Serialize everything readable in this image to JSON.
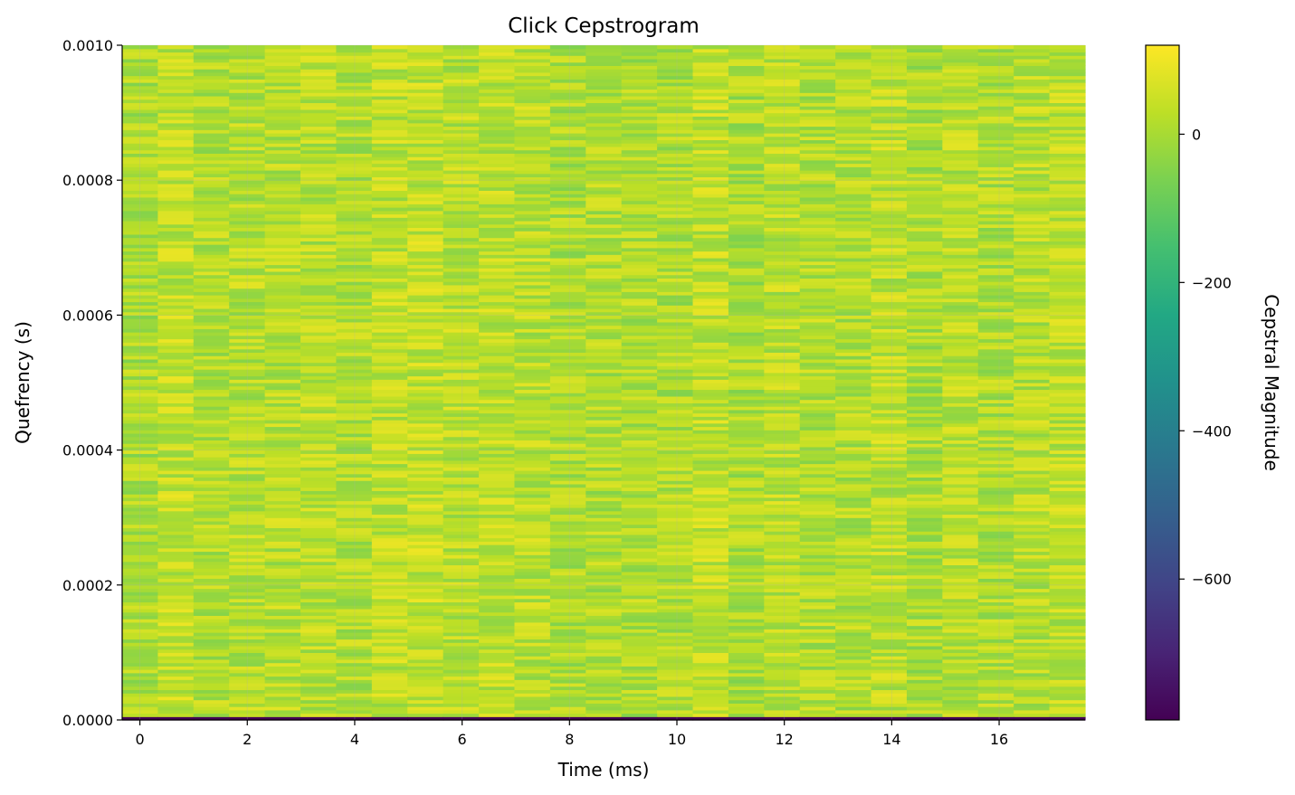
{
  "chart_data": {
    "type": "heatmap",
    "title": "Click Cepstrogram",
    "xlabel": "Time (ms)",
    "ylabel": "Quefrency (s)",
    "colorbar_label": "Cepstral Magnitude",
    "colormap": "viridis",
    "xlim": [
      -0.33,
      17.6
    ],
    "ylim": [
      0.0,
      0.001
    ],
    "clim": [
      -790,
      120
    ],
    "x_ticks": [
      0,
      2,
      4,
      6,
      8,
      10,
      12,
      14,
      16
    ],
    "x_tick_labels": [
      "0",
      "2",
      "4",
      "6",
      "8",
      "10",
      "12",
      "14",
      "16"
    ],
    "y_ticks": [
      0.0,
      0.0002,
      0.0004,
      0.0006,
      0.0008,
      0.001
    ],
    "y_tick_labels": [
      "0.0000",
      "0.0002",
      "0.0004",
      "0.0006",
      "0.0008",
      "0.0010"
    ],
    "colorbar_ticks": [
      0,
      -200,
      -400,
      -600
    ],
    "colorbar_tick_labels": [
      "0",
      "−200",
      "−400",
      "−600"
    ],
    "n_time_frames": 27,
    "time_frame_step_ms": 0.667,
    "n_quefrency_bins": 200,
    "quefrency_bin_step_s": 5e-06,
    "value_range_bulk": [
      -60,
      100
    ],
    "value_at_zero_quefrency": -790,
    "grid": true,
    "colors": {
      "grid": "#b0b0b0",
      "axis": "#000000"
    }
  }
}
